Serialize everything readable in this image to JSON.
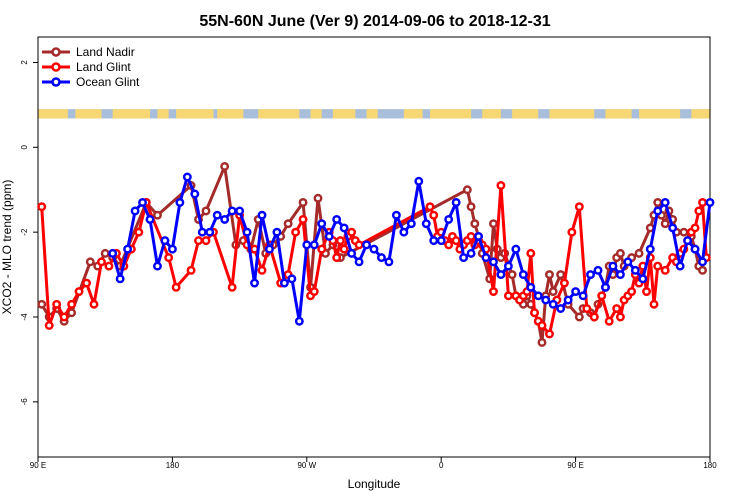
{
  "chart_data": {
    "type": "line",
    "title": "55N-60N June (Ver 9)   2014-09-06 to 2018-12-31",
    "xlabel": "Longitude",
    "ylabel": "XCO2 - MLO trend (ppm)",
    "xlim": [
      0,
      360
    ],
    "ylim": [
      -7.3,
      2.6
    ],
    "x_ticks": [
      {
        "value": 0,
        "label": "90 E"
      },
      {
        "value": 72,
        "label": "180"
      },
      {
        "value": 144,
        "label": "90 W"
      },
      {
        "value": 216,
        "label": "0"
      },
      {
        "value": 288,
        "label": "90 E"
      },
      {
        "value": 360,
        "label": "180"
      }
    ],
    "y_ticks": [
      {
        "value": 2,
        "label": "2"
      },
      {
        "value": 0,
        "label": "0"
      },
      {
        "value": -2,
        "label": "-2"
      },
      {
        "value": -4,
        "label": "-4"
      },
      {
        "value": -6,
        "label": "-6"
      }
    ],
    "grid": false,
    "legend_position": "top-left",
    "land_ocean_strip": {
      "y_top": 0.9,
      "y_bottom": 0.68,
      "land_color": "#f7d774",
      "ocean_color": "#a9bedb"
    },
    "series": [
      {
        "name": "Land Nadir",
        "color": "#a52a2a",
        "x": [
          2,
          6,
          10,
          14,
          18,
          28,
          32,
          36,
          40,
          44,
          58,
          64,
          82,
          86,
          90,
          100,
          106,
          110,
          114,
          118,
          122,
          126,
          130,
          134,
          142,
          146,
          150,
          154,
          158,
          162,
          230,
          232,
          234,
          236,
          238,
          242,
          244,
          246,
          248,
          250,
          254,
          256,
          258,
          260,
          262,
          264,
          266,
          268,
          270,
          272,
          274,
          276,
          280,
          284,
          290,
          292,
          296,
          298,
          300,
          302,
          304,
          306,
          308,
          310,
          312,
          314,
          318,
          322,
          328,
          330,
          332,
          334,
          336,
          338,
          340,
          342,
          346,
          350,
          352,
          354,
          356
        ],
        "y": [
          -3.7,
          -4.0,
          -3.8,
          -4.1,
          -3.9,
          -2.7,
          -2.8,
          -2.5,
          -2.6,
          -2.8,
          -1.3,
          -1.6,
          -0.9,
          -1.7,
          -1.5,
          -0.45,
          -2.3,
          -2.2,
          -2.4,
          -1.7,
          -2.5,
          -2.3,
          -2.1,
          -1.8,
          -1.3,
          -3.3,
          -1.2,
          -2.5,
          -2.3,
          -2.6,
          -1.0,
          -1.4,
          -1.8,
          -2.1,
          -2.5,
          -3.1,
          -1.8,
          -2.4,
          -2.6,
          -2.5,
          -3.0,
          -3.5,
          -3.6,
          -3.7,
          -3.5,
          -3.7,
          -3.9,
          -4.1,
          -4.6,
          -3.5,
          -3.0,
          -3.4,
          -3.0,
          -3.7,
          -4.0,
          -3.8,
          -3.9,
          -4.0,
          -3.7,
          -3.5,
          -3.3,
          -2.8,
          -3.0,
          -2.6,
          -2.5,
          -2.8,
          -2.6,
          -2.5,
          -1.9,
          -1.6,
          -1.3,
          -1.6,
          -1.8,
          -1.5,
          -1.7,
          -2.0,
          -2.0,
          -2.1,
          -2.4,
          -2.8,
          -2.9
        ]
      },
      {
        "name": "Land Glint",
        "color": "#ff0000",
        "x": [
          2,
          6,
          10,
          14,
          18,
          22,
          26,
          30,
          34,
          38,
          42,
          46,
          50,
          54,
          58,
          70,
          74,
          82,
          86,
          90,
          94,
          104,
          108,
          112,
          116,
          120,
          124,
          130,
          134,
          138,
          142,
          146,
          148,
          152,
          156,
          158,
          160,
          162,
          164,
          166,
          168,
          170,
          172,
          210,
          212,
          214,
          216,
          218,
          220,
          222,
          224,
          226,
          228,
          230,
          232,
          234,
          236,
          238,
          240,
          244,
          248,
          252,
          256,
          258,
          260,
          262,
          264,
          266,
          268,
          270,
          274,
          278,
          282,
          286,
          290,
          294,
          298,
          302,
          306,
          310,
          312,
          314,
          316,
          318,
          320,
          322,
          324,
          326,
          328,
          330,
          332,
          336,
          340,
          342,
          344,
          346,
          348,
          350,
          352,
          354,
          356,
          358
        ],
        "y": [
          -1.4,
          -4.2,
          -3.7,
          -4.0,
          -3.7,
          -3.4,
          -3.2,
          -3.7,
          -2.7,
          -2.8,
          -2.5,
          -2.8,
          -2.4,
          -2.0,
          -1.3,
          -2.6,
          -3.3,
          -2.9,
          -2.2,
          -2.2,
          -2.0,
          -3.3,
          -1.6,
          -2.3,
          -2.4,
          -2.9,
          -2.3,
          -3.2,
          -3.0,
          -2.0,
          -1.7,
          -3.5,
          -3.4,
          -2.4,
          -2.0,
          -2.2,
          -2.6,
          -2.2,
          -2.4,
          -2.1,
          -2.0,
          -2.2,
          -2.3,
          -1.4,
          -1.6,
          -2.1,
          -2.0,
          -2.2,
          -2.3,
          -2.1,
          -2.2,
          -2.4,
          -2.3,
          -2.2,
          -2.1,
          -2.3,
          -2.2,
          -2.3,
          -2.4,
          -3.4,
          -0.9,
          -3.5,
          -3.5,
          -3.6,
          -3.5,
          -3.4,
          -2.5,
          -3.9,
          -4.1,
          -4.2,
          -4.4,
          -3.6,
          -3.2,
          -2.0,
          -1.4,
          -3.8,
          -4.0,
          -3.5,
          -4.1,
          -3.8,
          -4.0,
          -3.6,
          -3.5,
          -3.4,
          -3.0,
          -3.2,
          -2.8,
          -3.4,
          -2.6,
          -3.7,
          -2.8,
          -2.9,
          -2.6,
          -2.7,
          -2.5,
          -2.4,
          -2.2,
          -2.0,
          -1.9,
          -1.5,
          -1.3,
          -2.6
        ]
      },
      {
        "name": "Ocean Glint",
        "color": "#0000ff",
        "x": [
          40,
          44,
          48,
          52,
          56,
          60,
          64,
          68,
          72,
          76,
          80,
          84,
          88,
          92,
          96,
          100,
          104,
          108,
          112,
          116,
          120,
          124,
          128,
          132,
          136,
          140,
          144,
          148,
          152,
          156,
          160,
          164,
          168,
          172,
          176,
          180,
          184,
          188,
          192,
          196,
          200,
          204,
          208,
          212,
          216,
          220,
          224,
          228,
          232,
          236,
          240,
          244,
          248,
          252,
          256,
          260,
          264,
          268,
          272,
          276,
          280,
          284,
          288,
          292,
          296,
          300,
          304,
          308,
          312,
          316,
          320,
          324,
          328,
          332,
          336,
          340,
          344,
          348,
          352,
          356,
          360
        ],
        "y": [
          -2.5,
          -3.1,
          -2.4,
          -1.5,
          -1.3,
          -1.7,
          -2.8,
          -2.2,
          -2.4,
          -1.3,
          -0.7,
          -1.1,
          -2.0,
          -2.0,
          -1.6,
          -1.7,
          -1.5,
          -1.5,
          -2.0,
          -3.2,
          -1.6,
          -2.4,
          -2.0,
          -3.2,
          -3.1,
          -4.1,
          -2.3,
          -2.3,
          -1.8,
          -2.1,
          -1.7,
          -1.9,
          -2.5,
          -2.7,
          -2.3,
          -2.4,
          -2.6,
          -2.7,
          -1.6,
          -2.0,
          -1.8,
          -0.8,
          -1.8,
          -2.2,
          -2.2,
          -1.7,
          -1.3,
          -2.6,
          -2.5,
          -2.1,
          -2.6,
          -2.7,
          -3.0,
          -2.8,
          -2.4,
          -3.0,
          -3.3,
          -3.5,
          -3.6,
          -3.7,
          -3.8,
          -3.6,
          -3.4,
          -3.5,
          -3.0,
          -2.9,
          -3.3,
          -2.8,
          -3.0,
          -2.7,
          -2.9,
          -3.1,
          -2.4,
          -1.5,
          -1.3,
          -1.9,
          -2.8,
          -2.2,
          -2.4,
          -2.7,
          -1.3
        ]
      }
    ]
  }
}
